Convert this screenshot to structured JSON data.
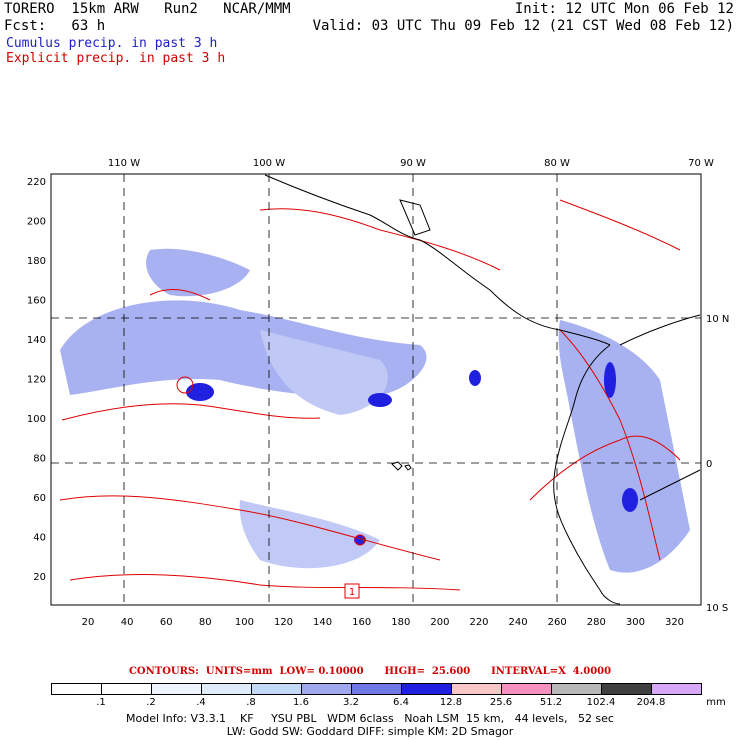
{
  "header": {
    "line1_left": "TORERO  15km ARW   Run2   NCAR/MMM",
    "line1_right": "Init: 12 UTC Mon 06 Feb 12",
    "line2_left": "Fcst:   63 h",
    "line2_right": "Valid: 03 UTC Thu 09 Feb 12 (21 CST Wed 08 Feb 12)",
    "line3": "Cumulus precip. in past 3 h",
    "line4": "Explicit precip. in past 3 h"
  },
  "axes": {
    "top_lon": [
      "110 W",
      "100 W",
      "90 W",
      "80 W",
      "70 W"
    ],
    "right_lat": [
      "10 N",
      "0",
      "10 S"
    ],
    "left_grid": [
      "220",
      "200",
      "180",
      "160",
      "140",
      "120",
      "100",
      "80",
      "60",
      "40",
      "20"
    ],
    "bottom_grid": [
      "20",
      "40",
      "60",
      "80",
      "100",
      "120",
      "140",
      "160",
      "180",
      "200",
      "220",
      "240",
      "260",
      "280",
      "300",
      "320"
    ]
  },
  "map_marker": "1",
  "contours_line": "CONTOURS:  UNITS=mm  LOW= 0.10000      HIGH=  25.600      INTERVAL=X  4.0000",
  "legend": {
    "unit": "mm",
    "labels": [
      ".1",
      ".2",
      ".4",
      ".8",
      "1.6",
      "3.2",
      "6.4",
      "12.8",
      "25.6",
      "51.2",
      "102.4",
      "204.8"
    ],
    "colors": [
      "#ffffff",
      "#ffffff",
      "#f0f4ff",
      "#e0ecfc",
      "#c4d8f8",
      "#a0a8f0",
      "#7078e8",
      "#2020e0",
      "#f8c8c8",
      "#f890c0",
      "#b8b8b8",
      "#404040",
      "#d8a8f8"
    ]
  },
  "model_info": {
    "line1": "Model Info: V3.3.1    KF     YSU PBL   WDM 6class   Noah LSM  15 km,   44 levels,   52 sec",
    "line2": "LW: Godd SW: Goddard DIFF: simple KM: 2D Smagor"
  }
}
